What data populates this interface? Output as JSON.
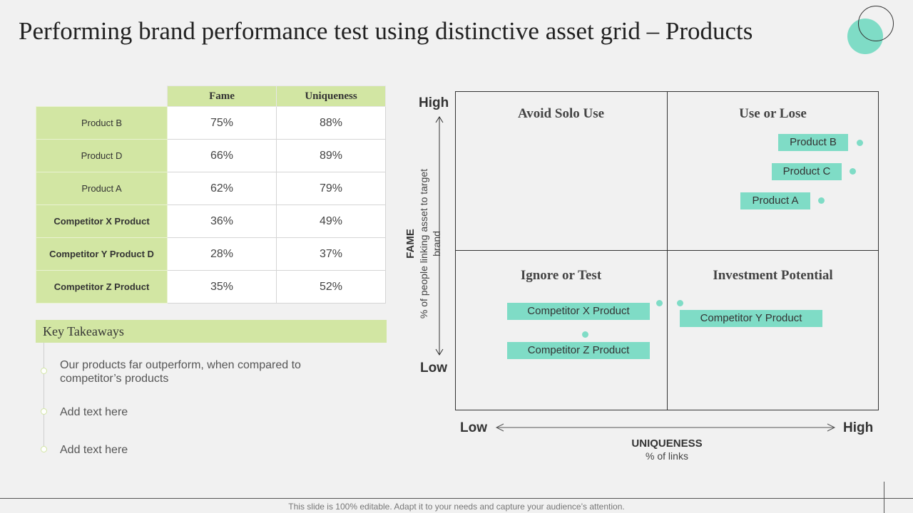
{
  "title": "Performing brand performance test using distinctive asset grid – Products",
  "table": {
    "headers": [
      "Fame",
      "Uniqueness"
    ],
    "rows": [
      {
        "label": "Product B",
        "fame": "75%",
        "uniqueness": "88%"
      },
      {
        "label": "Product D",
        "fame": "66%",
        "uniqueness": "89%"
      },
      {
        "label": "Product A",
        "fame": "62%",
        "uniqueness": "79%"
      },
      {
        "label": "Competitor X Product",
        "fame": "36%",
        "uniqueness": "49%"
      },
      {
        "label": "Competitor Y Product D",
        "fame": "28%",
        "uniqueness": "37%"
      },
      {
        "label": "Competitor Z Product",
        "fame": "35%",
        "uniqueness": "52%"
      }
    ]
  },
  "takeaways": {
    "heading": "Key Takeaways",
    "items": [
      "Our products far outperform, when compared to competitor’s products",
      "Add text here",
      "Add text here"
    ]
  },
  "matrix": {
    "quadrants": {
      "top_left": "Avoid Solo Use",
      "top_right": "Use or Lose",
      "bottom_left": "Ignore or Test",
      "bottom_right": "Investment Potential"
    },
    "products": {
      "product_b": "Product B",
      "product_c": "Product C",
      "product_a": "Product A",
      "competitor_x": "Competitor X Product",
      "competitor_z": "Competitor Z Product",
      "competitor_y": "Competitor Y Product"
    },
    "y_axis": {
      "high": "High",
      "low": "Low",
      "title": "FAME",
      "subtitle": "% of people linking asset to target brand"
    },
    "x_axis": {
      "low": "Low",
      "high": "High",
      "title": "UNIQUENESS",
      "subtitle": "% of links"
    },
    "accent_color": "#7fdcc6"
  },
  "footer": "This slide is 100% editable. Adapt it to your needs and capture your audience’s attention."
}
